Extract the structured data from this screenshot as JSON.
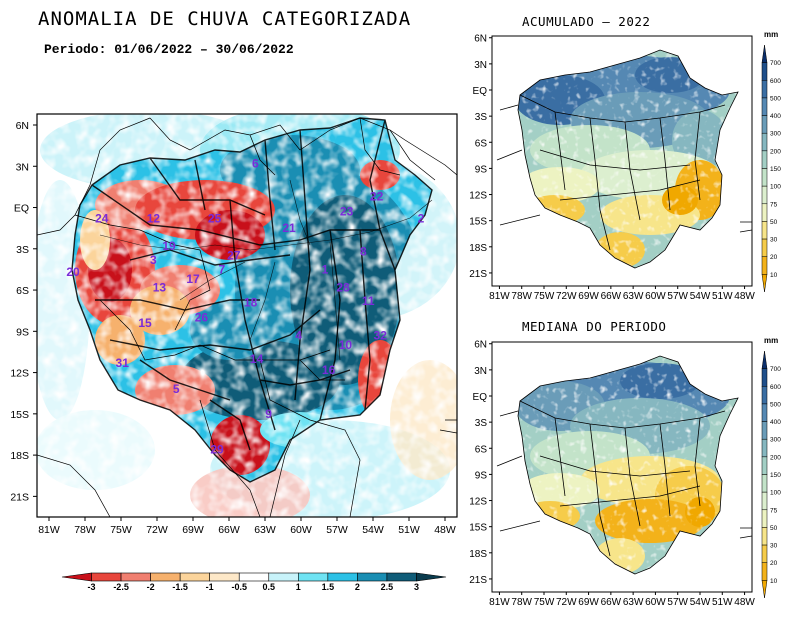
{
  "main_title": "ANOMALIA DE CHUVA CATEGORIZADA",
  "period": "Periodo: 01/06/2022 – 30/06/2022",
  "right_top_title": "ACUMULADO – 2022",
  "right_bottom_title": "MEDIANA DO PERIODO",
  "colorbar_unit": "mm",
  "main_map": {
    "lat_labels": [
      "6N",
      "3N",
      "EQ",
      "3S",
      "6S",
      "9S",
      "12S",
      "15S",
      "18S",
      "21S"
    ],
    "lon_labels": [
      "81W",
      "78W",
      "75W",
      "72W",
      "69W",
      "66W",
      "63W",
      "60W",
      "57W",
      "54W",
      "51W",
      "48W"
    ],
    "basin_numbers": [
      {
        "n": "6",
        "lon": -63.8,
        "lat": 3.2
      },
      {
        "n": "22",
        "lon": -53.7,
        "lat": 0.8
      },
      {
        "n": "24",
        "lon": -76.6,
        "lat": -0.8
      },
      {
        "n": "12",
        "lon": -72.3,
        "lat": -0.8
      },
      {
        "n": "25",
        "lon": -67.2,
        "lat": -0.8
      },
      {
        "n": "21",
        "lon": -61.0,
        "lat": -1.5
      },
      {
        "n": "23",
        "lon": -56.2,
        "lat": -0.3
      },
      {
        "n": "2",
        "lon": -50.0,
        "lat": -0.8
      },
      {
        "n": "19",
        "lon": -71.0,
        "lat": -2.8
      },
      {
        "n": "3",
        "lon": -72.3,
        "lat": -3.8
      },
      {
        "n": "27",
        "lon": -65.6,
        "lat": -3.5
      },
      {
        "n": "8",
        "lon": -54.8,
        "lat": -3.2
      },
      {
        "n": "20",
        "lon": -79.0,
        "lat": -4.7
      },
      {
        "n": "17",
        "lon": -69.0,
        "lat": -5.2
      },
      {
        "n": "7",
        "lon": -66.6,
        "lat": -4.5
      },
      {
        "n": "1",
        "lon": -58.0,
        "lat": -4.5
      },
      {
        "n": "13",
        "lon": -71.8,
        "lat": -5.8
      },
      {
        "n": "28",
        "lon": -56.5,
        "lat": -5.8
      },
      {
        "n": "18",
        "lon": -64.2,
        "lat": -6.9
      },
      {
        "n": "11",
        "lon": -54.4,
        "lat": -6.8
      },
      {
        "n": "15",
        "lon": -73.0,
        "lat": -8.4
      },
      {
        "n": "26",
        "lon": -68.3,
        "lat": -8.0
      },
      {
        "n": "4",
        "lon": -60.2,
        "lat": -9.3
      },
      {
        "n": "32",
        "lon": -53.4,
        "lat": -9.3
      },
      {
        "n": "10",
        "lon": -56.3,
        "lat": -10.0
      },
      {
        "n": "14",
        "lon": -63.7,
        "lat": -11.0
      },
      {
        "n": "31",
        "lon": -74.9,
        "lat": -11.3
      },
      {
        "n": "16",
        "lon": -57.7,
        "lat": -11.8
      },
      {
        "n": "5",
        "lon": -70.4,
        "lat": -13.2
      },
      {
        "n": "9",
        "lon": -62.7,
        "lat": -15.0
      },
      {
        "n": "29",
        "lon": -67.0,
        "lat": -17.6
      }
    ]
  },
  "small_maps": {
    "lat_labels": [
      "6N",
      "3N",
      "EQ",
      "3S",
      "6S",
      "9S",
      "12S",
      "15S",
      "18S",
      "21S"
    ],
    "lon_labels": [
      "81W",
      "78W",
      "75W",
      "72W",
      "69W",
      "66W",
      "63W",
      "60W",
      "57W",
      "54W",
      "51W",
      "48W"
    ]
  },
  "anomaly_colorbar": {
    "labels": [
      "-3",
      "-2.5",
      "-2",
      "-1.5",
      "-1",
      "-0.5",
      "0.5",
      "1",
      "1.5",
      "2",
      "2.5",
      "3"
    ],
    "colors": [
      "#c8101a",
      "#e8463c",
      "#f07f70",
      "#f6b16d",
      "#fbd49b",
      "#fde8c8",
      "#ffffff",
      "#c8f3fa",
      "#6fe3f3",
      "#2cc1e6",
      "#1a8eb3",
      "#0f5c78",
      "#0a3b4d"
    ]
  },
  "precip_colorbar": {
    "labels": [
      "700",
      "600",
      "500",
      "400",
      "300",
      "200",
      "150",
      "100",
      "75",
      "50",
      "30",
      "20",
      "10"
    ],
    "colors": [
      "#0b2f6b",
      "#1f4f8a",
      "#3a6ea3",
      "#5588b3",
      "#6a9cb8",
      "#86b7c0",
      "#a3cfc5",
      "#c3e3c9",
      "#dcefcf",
      "#edf3c2",
      "#f7e58a",
      "#f6cc4a",
      "#f3b21a",
      "#f0a800"
    ]
  }
}
